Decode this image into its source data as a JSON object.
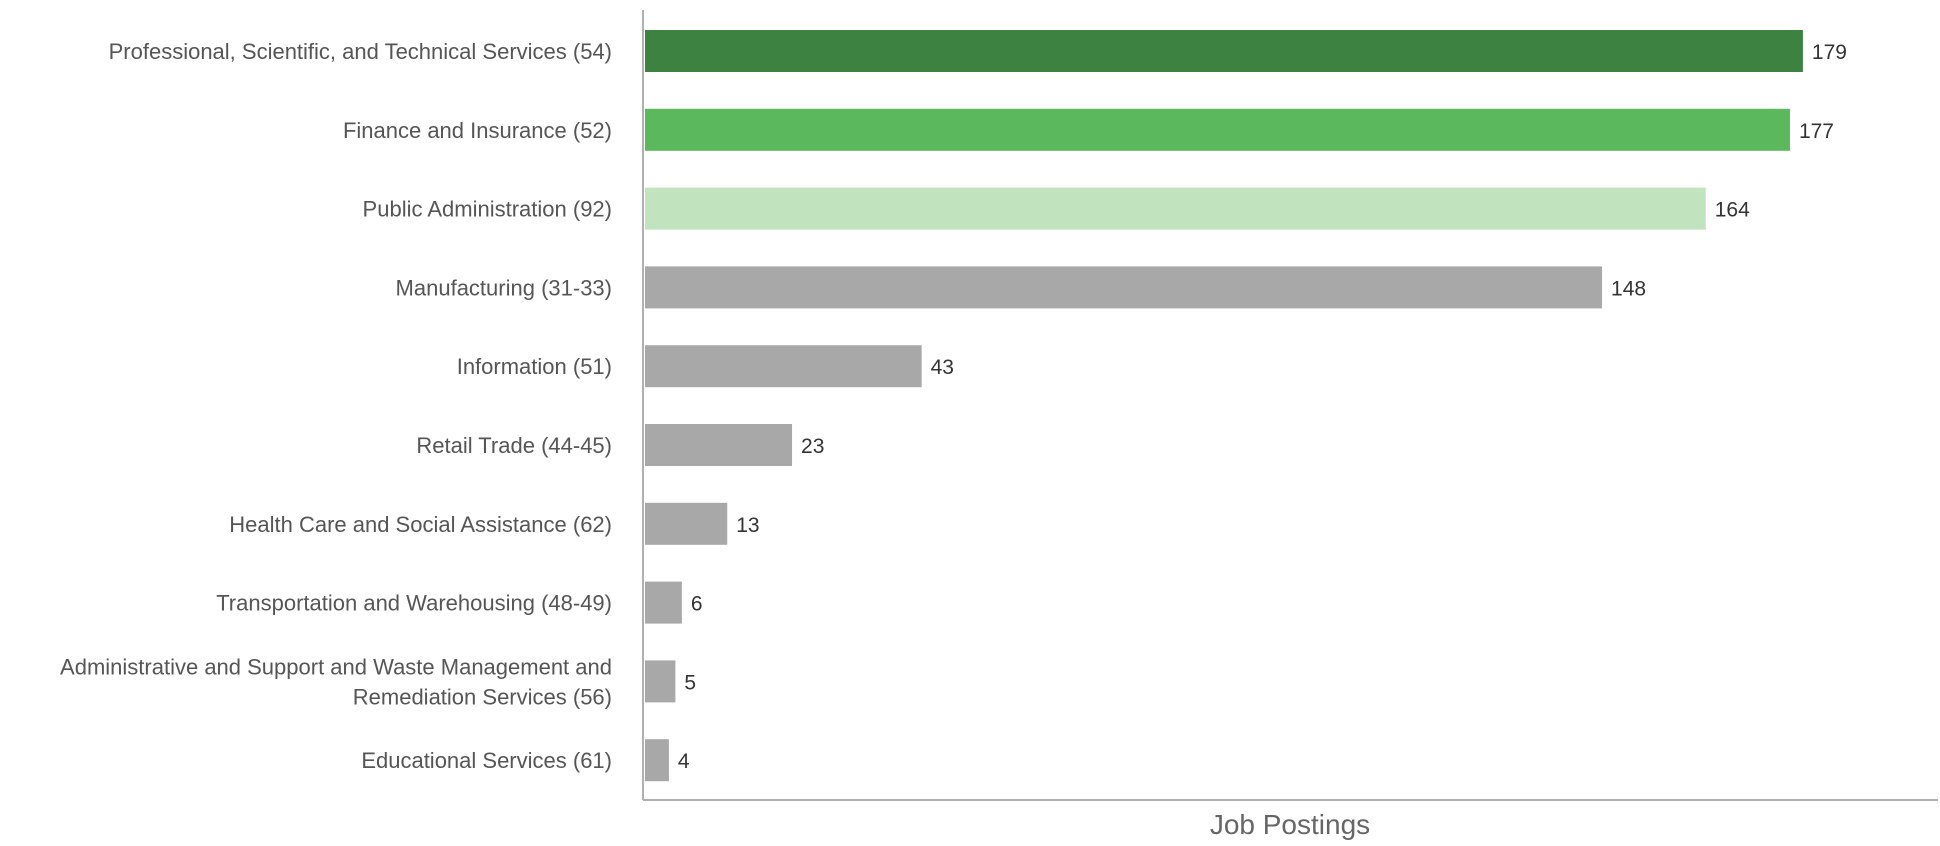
{
  "chart_data": {
    "type": "bar",
    "orientation": "horizontal",
    "title": "",
    "xlabel": "Job Postings",
    "ylabel": "",
    "categories": [
      "Professional, Scientific, and Technical Services (54)",
      "Finance and Insurance (52)",
      "Public Administration (92)",
      "Manufacturing (31-33)",
      "Information (51)",
      "Retail Trade (44-45)",
      "Health Care and Social Assistance (62)",
      "Transportation and Warehousing (48-49)",
      "Administrative and Support and Waste Management and Remediation Services (56)",
      "Educational Services (61)"
    ],
    "category_lines": [
      [
        "Professional, Scientific, and Technical Services (54)"
      ],
      [
        "Finance and Insurance (52)"
      ],
      [
        "Public Administration (92)"
      ],
      [
        "Manufacturing (31-33)"
      ],
      [
        "Information (51)"
      ],
      [
        "Retail Trade (44-45)"
      ],
      [
        "Health Care and Social Assistance (62)"
      ],
      [
        "Transportation and Warehousing (48-49)"
      ],
      [
        "Administrative and Support and Waste Management and",
        "Remediation Services (56)"
      ],
      [
        "Educational Services (61)"
      ]
    ],
    "values": [
      179,
      177,
      164,
      148,
      43,
      23,
      13,
      6,
      5,
      4
    ],
    "colors": [
      "#3d8241",
      "#5cb85c",
      "#c1e4bf",
      "#a8a8a8",
      "#a8a8a8",
      "#a8a8a8",
      "#a8a8a8",
      "#a8a8a8",
      "#a8a8a8",
      "#a8a8a8"
    ],
    "xlim": [
      0,
      200
    ],
    "grid": false,
    "data_labels": true
  }
}
